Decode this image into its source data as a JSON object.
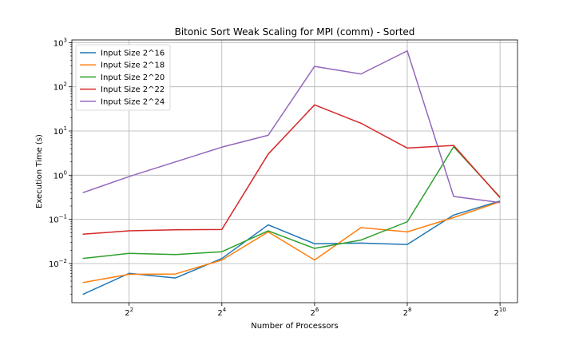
{
  "chart_data": {
    "type": "line",
    "title": "Bitonic Sort Weak Scaling for MPI (comm) - Sorted",
    "xlabel": "Number of Processors",
    "ylabel": "Execution Time (s)",
    "x_scale": "log2",
    "y_scale": "log10",
    "x": [
      2,
      4,
      8,
      16,
      32,
      64,
      128,
      256,
      512,
      1024
    ],
    "xlim": [
      1.7,
      1330
    ],
    "ylim": [
      0.0013,
      1150
    ],
    "x_ticks": [
      {
        "value": 4,
        "base": "2",
        "exp": "2"
      },
      {
        "value": 16,
        "base": "2",
        "exp": "4"
      },
      {
        "value": 64,
        "base": "2",
        "exp": "6"
      },
      {
        "value": 256,
        "base": "2",
        "exp": "8"
      },
      {
        "value": 1024,
        "base": "2",
        "exp": "10"
      }
    ],
    "y_ticks": [
      {
        "value": 0.01,
        "base": "10",
        "exp": "−2"
      },
      {
        "value": 0.1,
        "base": "10",
        "exp": "−1"
      },
      {
        "value": 1,
        "base": "10",
        "exp": "0"
      },
      {
        "value": 10,
        "base": "10",
        "exp": "1"
      },
      {
        "value": 100,
        "base": "10",
        "exp": "2"
      },
      {
        "value": 1000,
        "base": "10",
        "exp": "3"
      }
    ],
    "grid": true,
    "legend_position": "top-left",
    "series": [
      {
        "name": "Input Size 2^16",
        "color": "#1f77b4",
        "values": [
          0.002,
          0.006,
          0.0047,
          0.013,
          0.075,
          0.028,
          0.029,
          0.027,
          0.125,
          0.26
        ]
      },
      {
        "name": "Input Size 2^18",
        "color": "#ff7f0e",
        "values": [
          0.0037,
          0.0057,
          0.0058,
          0.012,
          0.052,
          0.012,
          0.065,
          0.052,
          0.11,
          0.25
        ]
      },
      {
        "name": "Input Size 2^20",
        "color": "#2ca02c",
        "values": [
          0.013,
          0.017,
          0.016,
          0.0185,
          0.055,
          0.022,
          0.034,
          0.088,
          4.4,
          0.32
        ]
      },
      {
        "name": "Input Size 2^22",
        "color": "#d62728",
        "values": [
          0.046,
          0.055,
          0.058,
          0.059,
          3.0,
          39,
          15,
          4.1,
          4.7,
          0.31
        ]
      },
      {
        "name": "Input Size 2^24",
        "color": "#9467bd",
        "values": [
          0.4,
          0.93,
          2.0,
          4.3,
          8.0,
          290,
          195,
          650,
          0.33,
          0.24
        ]
      }
    ]
  }
}
